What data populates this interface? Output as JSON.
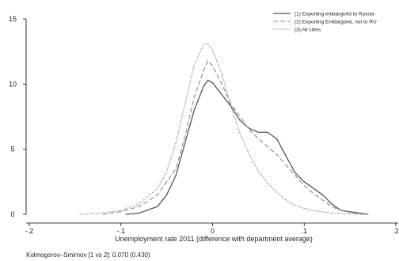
{
  "chart_data": {
    "type": "line",
    "title": "",
    "xlabel": "Unemployment rate 2011  (difference with department average)",
    "ylabel": "",
    "xlim": [
      -0.2,
      0.2
    ],
    "ylim": [
      0,
      15
    ],
    "x_ticks": [
      {
        "value": -0.2,
        "label": "-.2"
      },
      {
        "value": -0.1,
        "label": "-.1"
      },
      {
        "value": 0,
        "label": "0"
      },
      {
        "value": 0.1,
        "label": ".1"
      },
      {
        "value": 0.2,
        "label": ".2"
      }
    ],
    "y_ticks": [
      {
        "value": 0,
        "label": "0"
      },
      {
        "value": 5,
        "label": "5"
      },
      {
        "value": 10,
        "label": "10"
      },
      {
        "value": 15,
        "label": "15"
      }
    ],
    "grid": false,
    "legend_position": "top-right",
    "series": [
      {
        "name": "(1) Exporting embargoed to Russia",
        "style": "solid",
        "color": "#555555",
        "points": [
          [
            -0.095,
            0.0
          ],
          [
            -0.08,
            0.1
          ],
          [
            -0.06,
            0.6
          ],
          [
            -0.05,
            1.5
          ],
          [
            -0.04,
            3.0
          ],
          [
            -0.03,
            5.5
          ],
          [
            -0.02,
            8.0
          ],
          [
            -0.01,
            9.8
          ],
          [
            -0.005,
            10.3
          ],
          [
            0.0,
            10.1
          ],
          [
            0.01,
            9.2
          ],
          [
            0.02,
            8.3
          ],
          [
            0.03,
            7.2
          ],
          [
            0.04,
            6.6
          ],
          [
            0.05,
            6.3
          ],
          [
            0.06,
            6.3
          ],
          [
            0.07,
            5.8
          ],
          [
            0.08,
            4.5
          ],
          [
            0.09,
            3.2
          ],
          [
            0.1,
            2.5
          ],
          [
            0.11,
            2.0
          ],
          [
            0.12,
            1.5
          ],
          [
            0.13,
            0.8
          ],
          [
            0.14,
            0.3
          ],
          [
            0.15,
            0.2
          ],
          [
            0.16,
            0.1
          ],
          [
            0.17,
            0.0
          ]
        ]
      },
      {
        "name": "(2) Exporting Embargoed, not to RU",
        "style": "dashed",
        "color": "#8a8a8a",
        "points": [
          [
            -0.12,
            0.0
          ],
          [
            -0.1,
            0.2
          ],
          [
            -0.08,
            0.6
          ],
          [
            -0.06,
            1.5
          ],
          [
            -0.04,
            3.5
          ],
          [
            -0.03,
            6.0
          ],
          [
            -0.02,
            9.0
          ],
          [
            -0.01,
            11.0
          ],
          [
            -0.005,
            11.8
          ],
          [
            0.0,
            11.4
          ],
          [
            0.01,
            10.0
          ],
          [
            0.02,
            8.5
          ],
          [
            0.03,
            7.5
          ],
          [
            0.04,
            6.5
          ],
          [
            0.05,
            5.8
          ],
          [
            0.06,
            5.2
          ],
          [
            0.07,
            4.6
          ],
          [
            0.08,
            3.8
          ],
          [
            0.09,
            3.0
          ],
          [
            0.1,
            2.2
          ],
          [
            0.11,
            1.6
          ],
          [
            0.12,
            1.1
          ],
          [
            0.13,
            0.6
          ],
          [
            0.14,
            0.3
          ],
          [
            0.15,
            0.15
          ],
          [
            0.16,
            0.05
          ],
          [
            0.17,
            0.0
          ]
        ]
      },
      {
        "name": "(3) All cities",
        "style": "dotted",
        "color": "#777777",
        "points": [
          [
            -0.145,
            0.0
          ],
          [
            -0.12,
            0.1
          ],
          [
            -0.1,
            0.3
          ],
          [
            -0.08,
            0.8
          ],
          [
            -0.06,
            2.0
          ],
          [
            -0.05,
            3.3
          ],
          [
            -0.04,
            5.5
          ],
          [
            -0.03,
            8.5
          ],
          [
            -0.02,
            11.5
          ],
          [
            -0.01,
            13.0
          ],
          [
            -0.005,
            13.1
          ],
          [
            0.0,
            12.6
          ],
          [
            0.01,
            10.8
          ],
          [
            0.02,
            8.3
          ],
          [
            0.03,
            6.2
          ],
          [
            0.04,
            4.6
          ],
          [
            0.05,
            3.3
          ],
          [
            0.06,
            2.4
          ],
          [
            0.07,
            1.7
          ],
          [
            0.08,
            1.1
          ],
          [
            0.09,
            0.7
          ],
          [
            0.1,
            0.45
          ],
          [
            0.11,
            0.3
          ],
          [
            0.12,
            0.18
          ],
          [
            0.13,
            0.1
          ],
          [
            0.14,
            0.06
          ],
          [
            0.15,
            0.03
          ],
          [
            0.17,
            0.0
          ]
        ]
      }
    ],
    "annotations": [
      "Kolmogorov–Smirnov [1 vs 2]: 0.070 (0.430)"
    ]
  }
}
